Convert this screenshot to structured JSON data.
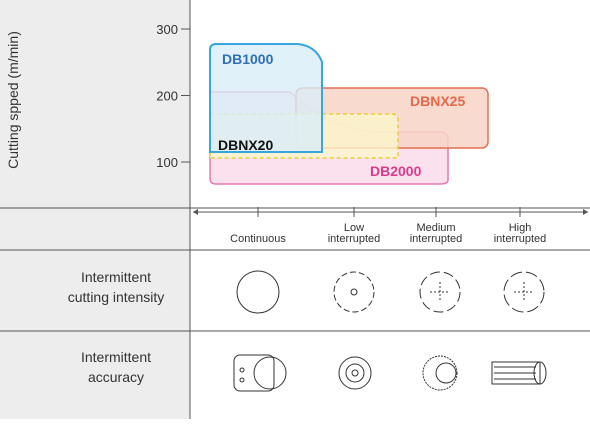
{
  "axis_label": "Cutting spped (m/min)",
  "yticks": [
    300,
    200,
    100
  ],
  "regions": [
    "DB1000",
    "DBNX25",
    "DBNX20",
    "DB2000"
  ],
  "columns": [
    [
      "Continuous"
    ],
    [
      "Low",
      "interrupted"
    ],
    [
      "Medium",
      "interrupted"
    ],
    [
      "High",
      "interrupted"
    ]
  ],
  "rows": [
    [
      "Intermittent",
      "cutting intensity"
    ],
    [
      "Intermittent",
      "accuracy"
    ]
  ]
}
